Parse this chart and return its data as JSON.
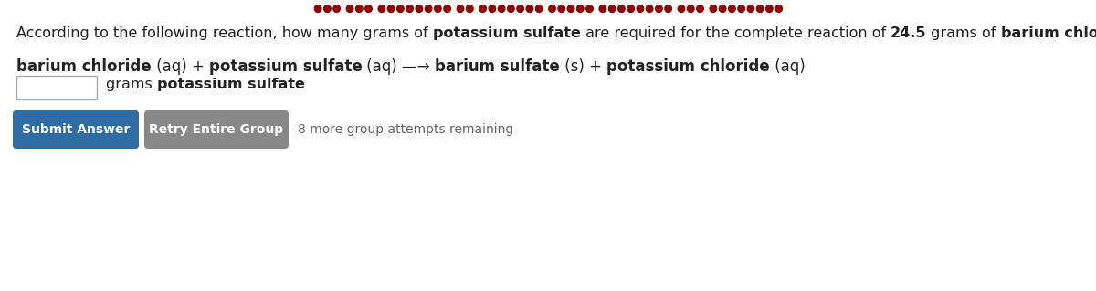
{
  "bg_color": "#ffffff",
  "question_segments": [
    [
      "According to the following reaction, how many grams of ",
      false
    ],
    [
      "potassium sulfate",
      true
    ],
    [
      " are required for the complete reaction of ",
      false
    ],
    [
      "24.5",
      true
    ],
    [
      " grams of ",
      false
    ],
    [
      "barium chloride",
      true
    ],
    [
      "?",
      false
    ]
  ],
  "reaction_segments": [
    [
      "barium chloride",
      true
    ],
    [
      " (aq) + ",
      false
    ],
    [
      "potassium sulfate",
      true
    ],
    [
      " (aq) —→ ",
      false
    ],
    [
      "barium sulfate",
      true
    ],
    [
      " (s) + ",
      false
    ],
    [
      "potassium chloride",
      true
    ],
    [
      " (aq)",
      false
    ]
  ],
  "input_label_normal": "grams ",
  "input_label_bold": "potassium sulfate",
  "btn1_text": "Submit Answer",
  "btn1_color": "#2e6da4",
  "btn2_text": "Retry Entire Group",
  "btn2_color": "#888888",
  "remaining_text": "8 more group attempts remaining",
  "header_text": "●●● ●●● ●●●●●●●● ●● ●●●●●●● ●●●●● ●●●●●●●● ●●● ●●●●●●●●",
  "font_size_main": 11.5,
  "font_size_reaction": 12,
  "font_size_btn": 10,
  "font_size_remaining": 10,
  "text_color": "#222222",
  "header_color": "#8b0000"
}
